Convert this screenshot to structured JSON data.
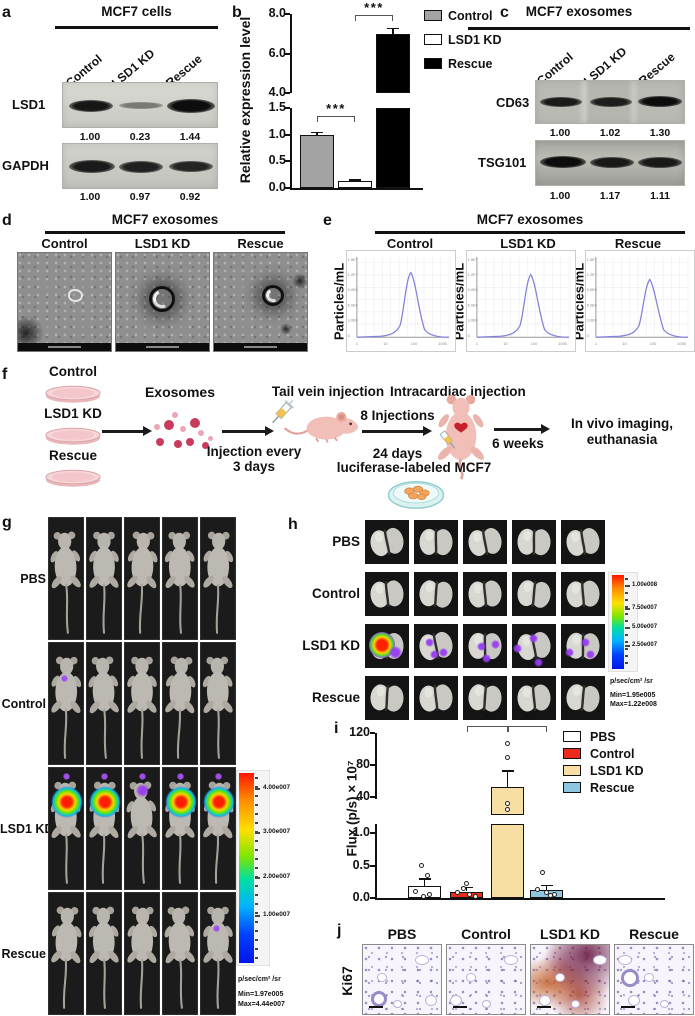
{
  "panel_labels": {
    "a": "a",
    "b": "b",
    "c": "c",
    "d": "d",
    "e": "e",
    "f": "f",
    "g": "g",
    "h": "h",
    "i": "i",
    "j": "j"
  },
  "panel_a": {
    "title": "MCF7 cells",
    "lanes": [
      "Control",
      "LSD1 KD",
      "Rescue"
    ],
    "rows": [
      {
        "protein": "LSD1",
        "values": [
          "1.00",
          "0.23",
          "1.44"
        ]
      },
      {
        "protein": "GAPDH",
        "values": [
          "1.00",
          "0.97",
          "0.92"
        ]
      }
    ]
  },
  "panel_c": {
    "title": "MCF7 exosomes",
    "lanes": [
      "Control",
      "LSD1 KD",
      "Rescue"
    ],
    "rows": [
      {
        "protein": "CD63",
        "values": [
          "1.00",
          "1.02",
          "1.30"
        ]
      },
      {
        "protein": "TSG101",
        "values": [
          "1.00",
          "1.17",
          "1.11"
        ]
      }
    ]
  },
  "panel_d": {
    "title": "MCF7 exosomes",
    "columns": [
      "Control",
      "LSD1 KD",
      "Rescue"
    ]
  },
  "panel_e": {
    "title": "MCF7 exosomes",
    "columns": [
      "Control",
      "LSD1 KD",
      "Rescue"
    ],
    "ylabel": "Particles/mL"
  },
  "panel_f": {
    "dishes": [
      "Control",
      "LSD1 KD",
      "Rescue"
    ],
    "exosomes_label": "Exosomes",
    "inj_every_1": "Injection every",
    "inj_every_2": "3 days",
    "tail_vein": "Tail vein injection",
    "eight_inj": "8 Injections",
    "days24": "24 days",
    "intracardiac": "Intracardiac injection",
    "luciferase": "luciferase-labeled MCF7",
    "six_weeks": "6 weeks",
    "invivo_1": "In vivo imaging,",
    "invivo_2": "euthanasia"
  },
  "panel_g": {
    "rows": [
      {
        "label": "PBS",
        "glow": [
          0,
          0,
          0,
          0,
          0
        ]
      },
      {
        "label": "Control",
        "glow": [
          1,
          0,
          0,
          0,
          0
        ]
      },
      {
        "label": "LSD1 KD",
        "glow": [
          3,
          3,
          2,
          3,
          3
        ]
      },
      {
        "label": "Rescue",
        "glow": [
          0,
          0,
          0,
          0,
          1
        ]
      }
    ],
    "colorbar": {
      "ticks": [
        "4.00e007",
        "3.00e007",
        "2.00e007",
        "1.00e007"
      ],
      "unit": "p/sec/cm² /sr",
      "min": "Min=1.97e005",
      "max": "Max=4.44e007"
    }
  },
  "panel_h": {
    "rows": [
      {
        "label": "PBS",
        "spots": [
          0,
          0,
          0,
          0,
          0
        ]
      },
      {
        "label": "Control",
        "spots": [
          0,
          0,
          0,
          0,
          0
        ]
      },
      {
        "label": "LSD1 KD",
        "spots": [
          3,
          2,
          2,
          2,
          2
        ]
      },
      {
        "label": "Rescue",
        "spots": [
          0,
          0,
          0,
          0,
          0
        ]
      }
    ],
    "colorbar": {
      "ticks": [
        "1.00e008",
        "7.50e007",
        "5.00e007",
        "2.50e007"
      ],
      "unit": "p/sec/cm² /sr",
      "min": "Min=1.95e005",
      "max": "Max=1.22e008"
    }
  },
  "panel_j": {
    "row_label": "Ki67",
    "columns": [
      "PBS",
      "Control",
      "LSD1 KD",
      "Rescue"
    ]
  },
  "chart_data": [
    {
      "id": "panel_b",
      "type": "bar",
      "ylabel": "Relative expression level",
      "categories": [
        "Control",
        "LSD1 KD",
        "Rescue"
      ],
      "values": [
        1.0,
        0.13,
        7.0
      ],
      "errors": [
        0.04,
        0.02,
        0.25
      ],
      "bar_colors": [
        "#a3a3a3",
        "#ffffff",
        "#000000"
      ],
      "axis_break": true,
      "top_axis": {
        "range": [
          4.0,
          8.0
        ],
        "ticks": [
          {
            "v": 4,
            "label": "4.0"
          },
          {
            "v": 6,
            "label": "6.0"
          },
          {
            "v": 8,
            "label": "8.0"
          }
        ]
      },
      "bottom_axis": {
        "range": [
          0.0,
          1.5
        ],
        "ticks": [
          {
            "v": 0,
            "label": "0.0"
          },
          {
            "v": 0.5,
            "label": "0.5"
          },
          {
            "v": 1,
            "label": "1.0"
          },
          {
            "v": 1.5,
            "label": "1.5"
          }
        ]
      },
      "significance": [
        {
          "a": 0,
          "b": 1,
          "label": "***",
          "where": "bottom"
        },
        {
          "a": 1,
          "b": 2,
          "label": "***",
          "where": "top"
        }
      ],
      "legend_position": "right"
    },
    {
      "id": "panel_i",
      "type": "bar",
      "ylabel": "Flux (p/s) × 10⁷",
      "categories": [
        "PBS",
        "Control",
        "LSD1 KD",
        "Rescue"
      ],
      "values": [
        0.19,
        0.1,
        52,
        0.12
      ],
      "errors": [
        0.1,
        0.06,
        20,
        0.07
      ],
      "points": [
        [
          0.5,
          0.35,
          0.1,
          0.06,
          0.02
        ],
        [
          0.23,
          0.15,
          0.08,
          0.06,
          0.03
        ],
        [
          107,
          90,
          32,
          25
        ],
        [
          0.4,
          0.13,
          0.09,
          0.06,
          0.04
        ]
      ],
      "point_dx": [
        [
          -3,
          3,
          -9,
          5,
          -1
        ],
        [
          0,
          -3,
          -9,
          3,
          9
        ],
        [
          0,
          0,
          0,
          0
        ],
        [
          -4,
          -9,
          0,
          8,
          4
        ]
      ],
      "bar_colors": [
        "#ffffff",
        "#ea2a1c",
        "#f7dfa4",
        "#8ec6de"
      ],
      "axis_break": true,
      "top_axis": {
        "range": [
          40,
          120
        ],
        "ticks": [
          {
            "v": 40,
            "label": "40"
          },
          {
            "v": 80,
            "label": "80"
          },
          {
            "v": 120,
            "label": "120"
          }
        ]
      },
      "bottom_axis": {
        "range": [
          0,
          1.0
        ],
        "ticks": [
          {
            "v": 0,
            "label": "0.0"
          },
          {
            "v": 0.5,
            "label": "0.5"
          },
          {
            "v": 1,
            "label": "1.0"
          }
        ]
      },
      "significance": [
        {
          "a": 1,
          "b": 2,
          "label": "*"
        },
        {
          "a": 2,
          "b": 3,
          "label": "*"
        }
      ],
      "legend_position": "right"
    },
    {
      "id": "panel_e",
      "type": "line",
      "ylabel": "Particles/mL",
      "series": [
        "Control",
        "LSD1 KD",
        "Rescue"
      ],
      "x_scale": "log",
      "x_ticks": [
        "1",
        "10",
        "100",
        "1000"
      ],
      "y_ticks": [
        "1.5E7",
        "1.2E7",
        "9.0E6",
        "6.0E6",
        "3.0E6",
        "0"
      ],
      "peak_x_nm": 140,
      "curve_color": "#8181dd"
    }
  ]
}
